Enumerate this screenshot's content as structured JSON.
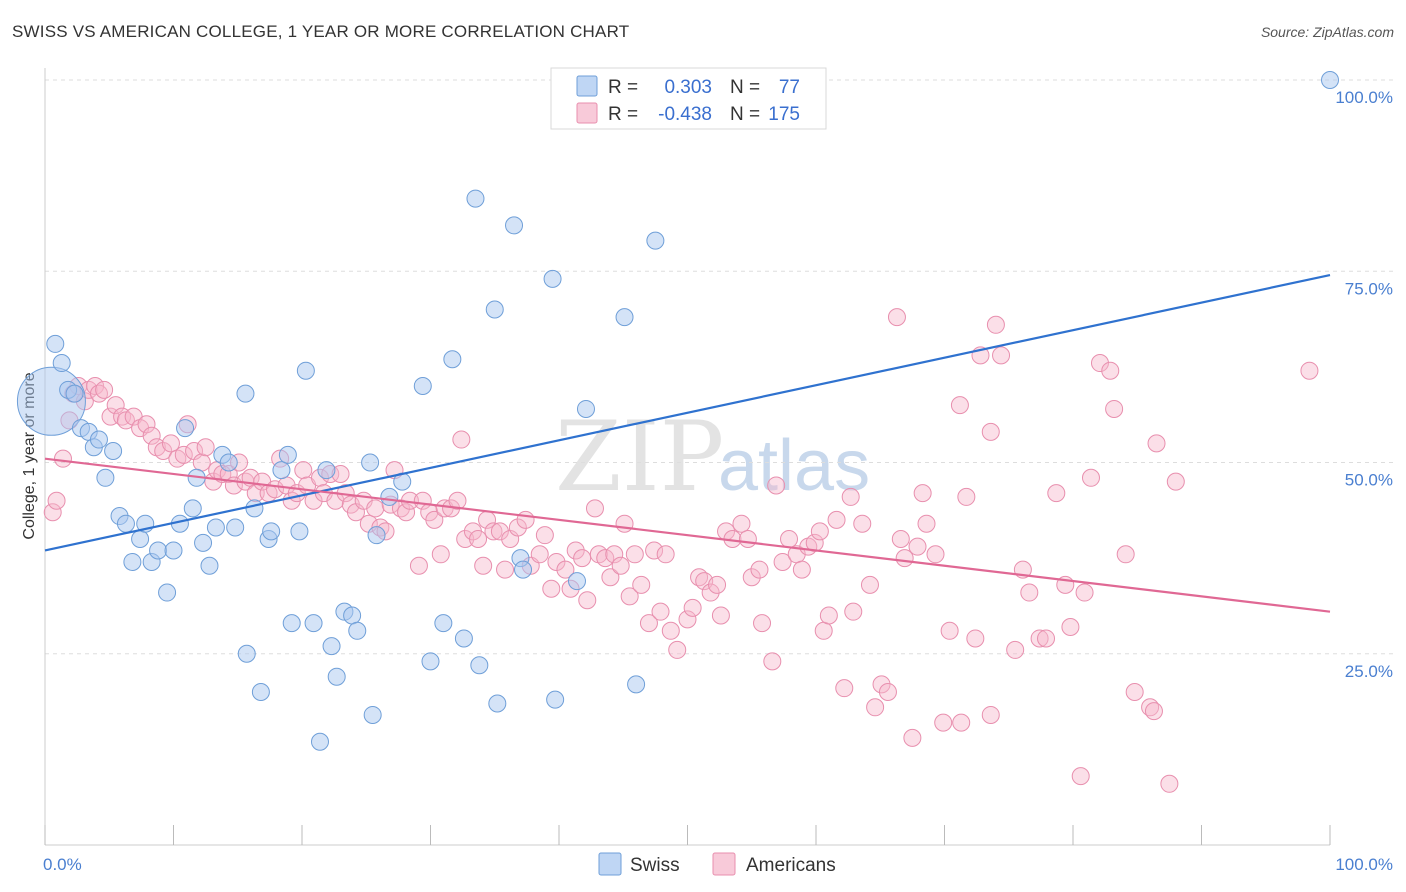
{
  "title": "SWISS VS AMERICAN COLLEGE, 1 YEAR OR MORE CORRELATION CHART",
  "source": "Source: ZipAtlas.com",
  "watermark": {
    "zip": "ZIP",
    "atlas": "atlas"
  },
  "colors": {
    "swiss_fill": "#a9c8f0",
    "swiss_stroke": "#6f9fd8",
    "swiss_line": "#2f72cf",
    "americans_fill": "#f6b8cc",
    "americans_stroke": "#e88fae",
    "americans_line": "#e06894",
    "grid": "#dddddd",
    "tick_text": "#4a7fd0"
  },
  "legend": {
    "rows": [
      {
        "r_label": "R =",
        "r_value": "0.303",
        "n_label": "N =",
        "n_value": "77"
      },
      {
        "r_label": "R =",
        "r_value": "-0.438",
        "n_label": "N =",
        "n_value": "175"
      }
    ]
  },
  "bottom_legend": {
    "swiss": "Swiss",
    "americans": "Americans"
  },
  "chart_data": {
    "type": "scatter",
    "title": "SWISS VS AMERICAN COLLEGE, 1 YEAR OR MORE CORRELATION CHART",
    "xlabel": "",
    "ylabel": "College, 1 year or more",
    "xlim": [
      0,
      100
    ],
    "ylim": [
      0,
      100
    ],
    "x_tick_labels": [
      "0.0%",
      "100.0%"
    ],
    "y_tick_labels": [
      "25.0%",
      "50.0%",
      "75.0%",
      "100.0%"
    ],
    "y_tick_values": [
      25,
      50,
      75,
      100
    ],
    "legend_position": "top-center",
    "series": [
      {
        "name": "Swiss",
        "R": 0.303,
        "N": 77,
        "trend": {
          "x": [
            0,
            100
          ],
          "y": [
            38.5,
            74.5
          ]
        },
        "points": [
          [
            0.5,
            58,
            4.0
          ],
          [
            0.8,
            65.5,
            1.0
          ],
          [
            1.3,
            63,
            1.0
          ],
          [
            1.8,
            59.5,
            1.0
          ],
          [
            2.3,
            59,
            1.0
          ],
          [
            2.8,
            54.5,
            1.0
          ],
          [
            3.4,
            54,
            1.0
          ],
          [
            3.8,
            52,
            1.0
          ],
          [
            4.2,
            53,
            1.0
          ],
          [
            4.7,
            48,
            1.0
          ],
          [
            5.3,
            51.5,
            1.0
          ],
          [
            5.8,
            43,
            1.0
          ],
          [
            6.3,
            42,
            1.0
          ],
          [
            6.8,
            37,
            1.0
          ],
          [
            7.4,
            40,
            1.0
          ],
          [
            7.8,
            42,
            1.0
          ],
          [
            8.3,
            37,
            1.0
          ],
          [
            8.8,
            38.5,
            1.0
          ],
          [
            9.5,
            33,
            1.0
          ],
          [
            10.0,
            38.5,
            1.0
          ],
          [
            10.5,
            42,
            1.0
          ],
          [
            10.9,
            54.5,
            1.0
          ],
          [
            11.5,
            44,
            1.0
          ],
          [
            11.8,
            48,
            1.0
          ],
          [
            12.3,
            39.5,
            1.0
          ],
          [
            12.8,
            36.5,
            1.0
          ],
          [
            13.3,
            41.5,
            1.0
          ],
          [
            13.8,
            51,
            1.0
          ],
          [
            14.3,
            50,
            1.0
          ],
          [
            14.8,
            41.5,
            1.0
          ],
          [
            15.7,
            25,
            1.0
          ],
          [
            15.6,
            59,
            1.0
          ],
          [
            16.3,
            44,
            1.0
          ],
          [
            16.8,
            20,
            1.0
          ],
          [
            17.4,
            40,
            1.0
          ],
          [
            17.6,
            41,
            1.0
          ],
          [
            18.4,
            49,
            1.0
          ],
          [
            18.9,
            51,
            1.0
          ],
          [
            19.2,
            29,
            1.0
          ],
          [
            19.8,
            41,
            1.0
          ],
          [
            20.3,
            62,
            1.0
          ],
          [
            20.9,
            29,
            1.0
          ],
          [
            21.4,
            13.5,
            1.0
          ],
          [
            21.9,
            49,
            1.0
          ],
          [
            22.3,
            26,
            1.0
          ],
          [
            22.7,
            22,
            1.0
          ],
          [
            23.3,
            30.5,
            1.0
          ],
          [
            23.9,
            30,
            1.0
          ],
          [
            24.3,
            28,
            1.0
          ],
          [
            25.3,
            50,
            1.0
          ],
          [
            25.5,
            17,
            1.0
          ],
          [
            25.8,
            40.5,
            1.0
          ],
          [
            26.8,
            45.5,
            1.0
          ],
          [
            27.8,
            47.5,
            1.0
          ],
          [
            29.4,
            60,
            1.0
          ],
          [
            30.0,
            24,
            1.0
          ],
          [
            31.0,
            29,
            1.0
          ],
          [
            31.7,
            63.5,
            1.0
          ],
          [
            32.6,
            27,
            1.0
          ],
          [
            33.5,
            84.5,
            1.0
          ],
          [
            33.8,
            23.5,
            1.0
          ],
          [
            35.0,
            70,
            1.0
          ],
          [
            35.2,
            18.5,
            1.0
          ],
          [
            36.5,
            81,
            1.0
          ],
          [
            37.0,
            37.5,
            1.0
          ],
          [
            37.2,
            36,
            1.0
          ],
          [
            39.5,
            74,
            1.0
          ],
          [
            39.7,
            19,
            1.0
          ],
          [
            41.4,
            34.5,
            1.0
          ],
          [
            42.1,
            57,
            1.0
          ],
          [
            45.1,
            69,
            1.0
          ],
          [
            46.0,
            21,
            1.0
          ],
          [
            47.5,
            79,
            1.0
          ],
          [
            100,
            100,
            1.0
          ]
        ]
      },
      {
        "name": "Americans",
        "R": -0.438,
        "N": 175,
        "trend": {
          "x": [
            0,
            100
          ],
          "y": [
            50.5,
            30.5
          ]
        },
        "points": [
          [
            0.6,
            43.5
          ],
          [
            0.9,
            45
          ],
          [
            1.4,
            50.5
          ],
          [
            1.9,
            55.5
          ],
          [
            2.2,
            59
          ],
          [
            2.6,
            60
          ],
          [
            3.1,
            58
          ],
          [
            3.4,
            59.5
          ],
          [
            3.9,
            60
          ],
          [
            4.2,
            59
          ],
          [
            4.6,
            59.5
          ],
          [
            5.1,
            56
          ],
          [
            5.5,
            57.5
          ],
          [
            6.0,
            56
          ],
          [
            6.3,
            55.5
          ],
          [
            6.9,
            56
          ],
          [
            7.4,
            54.5
          ],
          [
            7.9,
            55
          ],
          [
            8.3,
            53.5
          ],
          [
            8.7,
            52
          ],
          [
            9.2,
            51.5
          ],
          [
            9.8,
            52.5
          ],
          [
            10.3,
            50.5
          ],
          [
            10.8,
            51
          ],
          [
            11.1,
            55
          ],
          [
            11.6,
            51.5
          ],
          [
            12.2,
            50
          ],
          [
            12.5,
            52
          ],
          [
            13.1,
            47.5
          ],
          [
            13.4,
            49
          ],
          [
            13.8,
            48.5
          ],
          [
            14.3,
            48.5
          ],
          [
            14.7,
            47
          ],
          [
            15.1,
            50
          ],
          [
            15.6,
            47.5
          ],
          [
            16.0,
            48
          ],
          [
            16.4,
            46
          ],
          [
            16.9,
            47.5
          ],
          [
            17.4,
            46
          ],
          [
            17.9,
            46.5
          ],
          [
            18.3,
            50.5
          ],
          [
            18.8,
            47
          ],
          [
            19.2,
            45
          ],
          [
            19.6,
            46
          ],
          [
            20.1,
            49
          ],
          [
            20.4,
            47
          ],
          [
            20.9,
            45
          ],
          [
            21.4,
            48
          ],
          [
            21.7,
            46
          ],
          [
            22.2,
            48.5
          ],
          [
            22.6,
            45
          ],
          [
            23.0,
            48.5
          ],
          [
            23.4,
            46
          ],
          [
            23.8,
            44.5
          ],
          [
            24.2,
            43.5
          ],
          [
            24.8,
            45
          ],
          [
            25.2,
            42
          ],
          [
            25.7,
            44
          ],
          [
            26.1,
            41.5
          ],
          [
            26.5,
            41
          ],
          [
            26.9,
            44.5
          ],
          [
            27.2,
            49
          ],
          [
            27.7,
            44
          ],
          [
            28.1,
            43.5
          ],
          [
            28.4,
            45
          ],
          [
            29.1,
            36.5
          ],
          [
            29.4,
            45
          ],
          [
            29.9,
            43.5
          ],
          [
            30.3,
            42.5
          ],
          [
            30.8,
            38
          ],
          [
            31.1,
            44
          ],
          [
            31.6,
            44
          ],
          [
            32.1,
            45
          ],
          [
            32.4,
            53
          ],
          [
            32.7,
            40
          ],
          [
            33.3,
            41
          ],
          [
            33.7,
            40
          ],
          [
            34.1,
            36.5
          ],
          [
            34.4,
            42.5
          ],
          [
            34.9,
            41
          ],
          [
            35.4,
            41
          ],
          [
            35.8,
            36
          ],
          [
            36.2,
            40
          ],
          [
            36.8,
            41.5
          ],
          [
            37.4,
            42.5
          ],
          [
            37.8,
            36.5
          ],
          [
            38.5,
            38
          ],
          [
            38.9,
            40.5
          ],
          [
            39.4,
            33.5
          ],
          [
            39.8,
            37
          ],
          [
            40.5,
            36
          ],
          [
            40.9,
            33.5
          ],
          [
            41.3,
            38.5
          ],
          [
            41.8,
            37.5
          ],
          [
            42.2,
            32
          ],
          [
            42.8,
            44
          ],
          [
            43.1,
            38
          ],
          [
            43.6,
            37.5
          ],
          [
            44.0,
            35
          ],
          [
            44.3,
            38
          ],
          [
            44.8,
            36.5
          ],
          [
            45.1,
            42
          ],
          [
            45.5,
            32.5
          ],
          [
            45.9,
            38
          ],
          [
            46.4,
            34
          ],
          [
            47.0,
            29
          ],
          [
            47.4,
            38.5
          ],
          [
            47.9,
            30.5
          ],
          [
            48.3,
            38
          ],
          [
            48.7,
            28
          ],
          [
            49.2,
            25.5
          ],
          [
            50.0,
            29.5
          ],
          [
            50.4,
            31
          ],
          [
            50.9,
            35
          ],
          [
            51.3,
            34.5
          ],
          [
            51.8,
            33
          ],
          [
            52.3,
            34
          ],
          [
            52.6,
            30
          ],
          [
            53.0,
            41
          ],
          [
            53.5,
            40
          ],
          [
            54.2,
            42
          ],
          [
            54.7,
            40
          ],
          [
            55.0,
            35
          ],
          [
            55.6,
            36
          ],
          [
            55.8,
            29
          ],
          [
            56.6,
            24
          ],
          [
            56.9,
            47
          ],
          [
            57.4,
            37
          ],
          [
            57.9,
            40
          ],
          [
            58.5,
            38
          ],
          [
            58.9,
            36
          ],
          [
            59.4,
            39
          ],
          [
            59.9,
            39.5
          ],
          [
            60.3,
            41
          ],
          [
            60.6,
            28
          ],
          [
            61.0,
            30
          ],
          [
            61.6,
            42.5
          ],
          [
            62.2,
            20.5
          ],
          [
            62.7,
            45.5
          ],
          [
            62.9,
            30.5
          ],
          [
            63.6,
            42
          ],
          [
            64.2,
            34
          ],
          [
            64.6,
            18
          ],
          [
            65.1,
            21
          ],
          [
            65.6,
            20
          ],
          [
            66.3,
            69
          ],
          [
            66.6,
            40
          ],
          [
            66.9,
            37.5
          ],
          [
            67.5,
            14
          ],
          [
            67.9,
            39
          ],
          [
            68.3,
            46
          ],
          [
            68.6,
            42
          ],
          [
            69.3,
            38
          ],
          [
            69.9,
            16
          ],
          [
            70.4,
            28
          ],
          [
            71.2,
            57.5
          ],
          [
            71.3,
            16
          ],
          [
            71.7,
            45.5
          ],
          [
            72.4,
            27
          ],
          [
            72.8,
            64
          ],
          [
            73.6,
            54
          ],
          [
            73.6,
            17
          ],
          [
            74.0,
            68
          ],
          [
            74.4,
            64
          ],
          [
            75.5,
            25.5
          ],
          [
            76.1,
            36
          ],
          [
            76.6,
            33
          ],
          [
            77.4,
            27
          ],
          [
            77.9,
            27
          ],
          [
            78.7,
            46
          ],
          [
            79.4,
            34
          ],
          [
            79.8,
            28.5
          ],
          [
            80.6,
            9
          ],
          [
            80.9,
            33
          ],
          [
            81.4,
            48
          ],
          [
            82.1,
            63
          ],
          [
            82.9,
            62
          ],
          [
            83.2,
            57
          ],
          [
            84.1,
            38
          ],
          [
            84.8,
            20
          ],
          [
            86.0,
            18
          ],
          [
            86.3,
            17.5
          ],
          [
            86.5,
            52.5
          ],
          [
            87.5,
            8
          ],
          [
            88.0,
            47.5
          ],
          [
            98.4,
            62
          ]
        ]
      }
    ]
  }
}
